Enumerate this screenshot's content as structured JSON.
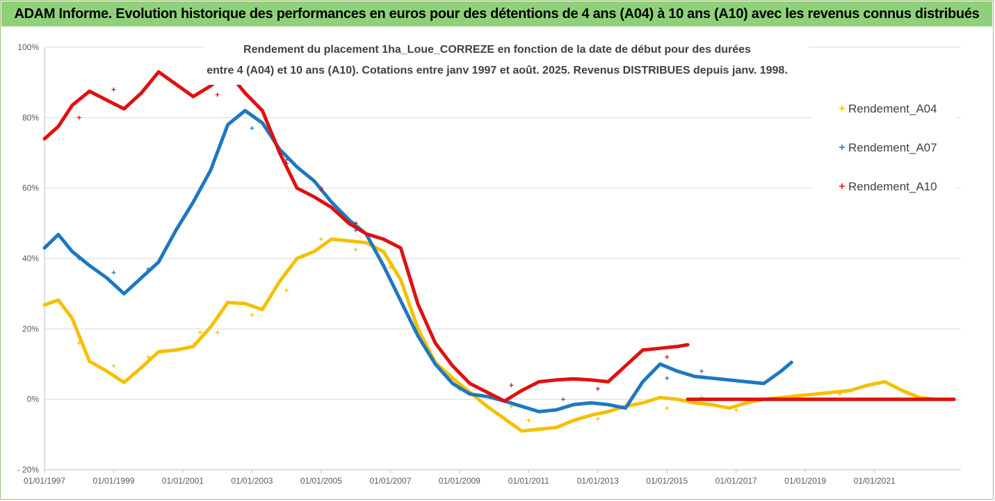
{
  "banner": {
    "title": "ADAM Informe. Evolution historique des performances en euros pour des détentions de 4 ans (A04) à 10 ans (A10) avec les revenus connus distribués"
  },
  "chart_data": {
    "type": "scatter",
    "title": "Rendement du placement 1ha_Loue_CORREZE en fonction de la date de début pour des durées",
    "subtitle": "entre 4 (A04) et 10 ans (A10). Cotations entre janv 1997 et août. 2025. Revenus DISTRIBUES depuis janv. 1998.",
    "xlabel": "",
    "ylabel": "",
    "xlim": [
      1997.0,
      2023.5
    ],
    "ylim": [
      -20,
      100
    ],
    "y_ticks": [
      -20,
      0,
      20,
      40,
      60,
      80,
      100
    ],
    "y_tick_labels": [
      "- 20%",
      "0%",
      "20%",
      "40%",
      "60%",
      "80%",
      "100%"
    ],
    "x_ticks": [
      1997,
      1999,
      2001,
      2003,
      2005,
      2007,
      2009,
      2011,
      2013,
      2015,
      2017,
      2019,
      2021
    ],
    "x_tick_labels": [
      "01/01/1997",
      "01/01/1999",
      "01/01/2001",
      "01/01/2003",
      "01/01/2005",
      "01/01/2007",
      "01/01/2009",
      "01/01/2011",
      "01/01/2013",
      "01/01/2015",
      "01/01/2017",
      "01/01/2019",
      "01/01/2021"
    ],
    "grid": "horizontal",
    "legend_position": "right",
    "series": [
      {
        "name": "Rendement_A04",
        "color": "#f5c000",
        "x": [
          1997.0,
          1997.4,
          1997.8,
          1998.3,
          1998.8,
          1999.3,
          1999.8,
          2000.3,
          2000.8,
          2001.3,
          2001.8,
          2002.3,
          2002.8,
          2003.3,
          2003.8,
          2004.3,
          2004.8,
          2005.3,
          2005.8,
          2006.3,
          2006.8,
          2007.3,
          2007.8,
          2008.3,
          2008.8,
          2009.3,
          2009.8,
          2010.3,
          2010.8,
          2011.3,
          2011.8,
          2012.3,
          2012.8,
          2013.3,
          2013.8,
          2014.3,
          2014.8,
          2015.3,
          2015.8,
          2016.3,
          2016.8,
          2017.3,
          2017.8,
          2018.3,
          2018.8,
          2019.3,
          2019.8,
          2020.3,
          2020.8,
          2021.3,
          2021.8,
          2022.3,
          2022.8,
          2023.3
        ],
        "values": [
          26.8,
          28.2,
          23.0,
          10.8,
          8.0,
          4.8,
          9.0,
          13.5,
          14.0,
          15.0,
          20.5,
          27.5,
          27.2,
          25.5,
          33.5,
          40.0,
          42.0,
          45.5,
          45.0,
          44.5,
          42.0,
          34.0,
          20.0,
          10.5,
          6.0,
          2.0,
          -2.0,
          -5.5,
          -9.0,
          -8.5,
          -8.0,
          -6.0,
          -4.5,
          -3.5,
          -2.0,
          -1.0,
          0.5,
          0.0,
          -1.0,
          -1.5,
          -2.5,
          -1.0,
          0.0,
          0.5,
          1.0,
          1.5,
          2.0,
          2.5,
          4.0,
          5.0,
          2.5,
          0.5,
          0.0,
          0.0
        ],
        "outliers_x": [
          1998.0,
          1999.0,
          2000.0,
          2001.5,
          2002.0,
          2003.0,
          2004.0,
          2005.0,
          2006.0,
          2007.0,
          2007.6,
          2010.5,
          2011.0,
          2013.0,
          2015.0,
          2016.0,
          2017.0,
          2020.0,
          2021.0,
          2022.0
        ],
        "outliers_y": [
          16.0,
          9.5,
          12.0,
          19.0,
          19.0,
          24.0,
          31.0,
          45.5,
          42.5,
          37.5,
          22.0,
          -2.0,
          -6.0,
          -5.5,
          -2.5,
          0.5,
          -3.0,
          1.5,
          4.5,
          1.5
        ]
      },
      {
        "name": "Rendement_A07",
        "color": "#1f77c0",
        "x": [
          1997.0,
          1997.4,
          1997.8,
          1998.3,
          1998.8,
          1999.3,
          1999.8,
          2000.3,
          2000.8,
          2001.3,
          2001.8,
          2002.3,
          2002.8,
          2003.3,
          2003.8,
          2004.3,
          2004.8,
          2005.3,
          2005.8,
          2006.3,
          2006.8,
          2007.3,
          2007.8,
          2008.3,
          2008.8,
          2009.3,
          2009.8,
          2010.3,
          2010.8,
          2011.3,
          2011.8,
          2012.3,
          2012.8,
          2013.3,
          2013.8,
          2014.3,
          2014.8,
          2015.3,
          2015.8,
          2016.3,
          2016.8,
          2017.3,
          2017.8,
          2018.3,
          2018.6
        ],
        "values": [
          43.0,
          46.8,
          42.0,
          38.0,
          34.5,
          30.0,
          34.5,
          39.0,
          48.0,
          56.0,
          65.0,
          78.0,
          82.0,
          78.5,
          71.0,
          66.0,
          62.0,
          56.0,
          51.0,
          47.0,
          38.0,
          28.0,
          18.0,
          10.0,
          4.5,
          1.5,
          0.8,
          -0.5,
          -2.0,
          -3.5,
          -3.0,
          -1.5,
          -1.0,
          -1.5,
          -2.5,
          5.0,
          10.0,
          8.0,
          6.5,
          6.0,
          5.5,
          5.0,
          4.5,
          8.0,
          10.5
        ],
        "outliers_x": [
          1998.0,
          1999.0,
          2000.0,
          2003.0,
          2004.0,
          2005.0,
          2006.0,
          2009.0,
          2012.0,
          2015.0,
          2016.0
        ],
        "outliers_y": [
          40.0,
          36.0,
          37.0,
          77.0,
          68.0,
          60.0,
          48.0,
          3.0,
          0.0,
          6.0,
          8.0
        ]
      },
      {
        "name": "Rendement_A10",
        "color": "#e01010",
        "x": [
          1997.0,
          1997.4,
          1997.8,
          1998.3,
          1998.8,
          1999.3,
          1999.8,
          2000.3,
          2000.8,
          2001.3,
          2001.8,
          2002.3,
          2002.8,
          2003.3,
          2003.8,
          2004.3,
          2004.8,
          2005.3,
          2005.8,
          2006.3,
          2006.8,
          2007.3,
          2007.8,
          2008.3,
          2008.8,
          2009.3,
          2009.8,
          2010.3,
          2010.8,
          2011.3,
          2011.8,
          2012.3,
          2012.8,
          2013.3,
          2013.8,
          2014.3,
          2014.8,
          2015.3,
          2015.6
        ],
        "values": [
          74.0,
          77.5,
          83.5,
          87.5,
          85.0,
          82.5,
          87.0,
          93.0,
          89.5,
          86.0,
          89.0,
          93.0,
          87.0,
          82.0,
          70.0,
          60.0,
          57.5,
          54.5,
          50.0,
          47.0,
          45.5,
          43.0,
          27.0,
          16.0,
          9.5,
          4.5,
          2.0,
          -0.5,
          2.5,
          5.0,
          5.5,
          5.8,
          5.5,
          5.0,
          9.5,
          14.0,
          14.5,
          15.0,
          15.5
        ],
        "tail_x": [
          2015.6,
          2016.3,
          2017.0,
          2018.0,
          2019.0,
          2020.0,
          2021.0,
          2022.0,
          2023.3
        ],
        "tail_values": [
          0.0,
          0.0,
          0.0,
          0.0,
          0.0,
          0.0,
          0.0,
          0.0,
          0.0
        ],
        "outliers_x": [
          1998.0,
          1999.0,
          2002.0,
          2003.0,
          2004.0,
          2005.0,
          2006.0,
          2010.5,
          2013.0,
          2015.0
        ],
        "outliers_y": [
          80.0,
          88.0,
          86.5,
          85.0,
          67.0,
          59.5,
          50.0,
          4.0,
          3.0,
          12.0
        ]
      }
    ]
  }
}
